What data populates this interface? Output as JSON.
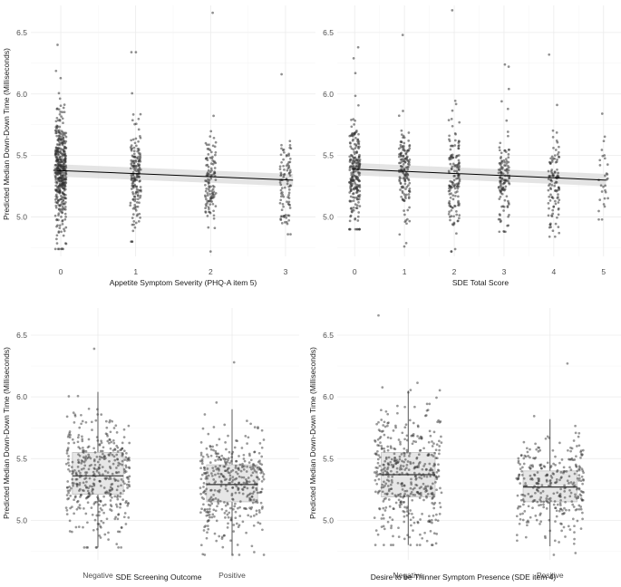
{
  "figure": {
    "panels": [
      {
        "id": "appetite",
        "xlabel": "Appetite Symptom Severity (PHQ-A item 5)",
        "ylabel": "Predicted Median Down-Down Time (Milliseconds)"
      },
      {
        "id": "sde-total",
        "xlabel": "SDE Total Score",
        "ylabel": ""
      },
      {
        "id": "sde-screening",
        "xlabel": "SDE Screening Outcome",
        "ylabel": "Predicted Median Down-Down Time (Milliseconds)"
      },
      {
        "id": "thinner",
        "xlabel": "Desire to be Thinner Symptom Presence (SDE item 4)",
        "ylabel": "Predicted Median Down-Down Time (Milliseconds)"
      }
    ]
  },
  "chart_data": [
    {
      "type": "scatter",
      "title": "",
      "xlabel": "Appetite Symptom Severity (PHQ-A item 5)",
      "ylabel": "Predicted Median Down-Down Time (Milliseconds)",
      "x_ticks": [
        "0",
        "1",
        "2",
        "3"
      ],
      "y_ticks": [
        "5.0",
        "5.5",
        "6.0",
        "6.5"
      ],
      "xlim": [
        -0.4,
        3.4
      ],
      "ylim": [
        4.68,
        6.72
      ],
      "grid": true,
      "point_color": "#333333",
      "groups": [
        {
          "x": 0,
          "n": 420,
          "center": 5.38,
          "spread": 0.23,
          "min": 4.74,
          "max": 6.4
        },
        {
          "x": 1,
          "n": 170,
          "center": 5.33,
          "spread": 0.22,
          "min": 4.8,
          "max": 6.34
        },
        {
          "x": 2,
          "n": 120,
          "center": 5.3,
          "spread": 0.22,
          "min": 4.72,
          "max": 6.66
        },
        {
          "x": 3,
          "n": 95,
          "center": 5.28,
          "spread": 0.21,
          "min": 4.86,
          "max": 6.16
        }
      ],
      "trend": {
        "x": [
          -0.1,
          3.1
        ],
        "y": [
          5.38,
          5.3
        ],
        "band": 0.05,
        "color": "#000000",
        "band_color": "#d9d9d9"
      }
    },
    {
      "type": "scatter",
      "title": "",
      "xlabel": "SDE Total Score",
      "ylabel": "",
      "x_ticks": [
        "0",
        "1",
        "2",
        "3",
        "4",
        "5"
      ],
      "y_ticks": [
        "5.0",
        "5.5",
        "6.0",
        "6.5"
      ],
      "xlim": [
        -0.35,
        5.35
      ],
      "ylim": [
        4.68,
        6.72
      ],
      "grid": true,
      "point_color": "#333333",
      "groups": [
        {
          "x": 0,
          "n": 230,
          "center": 5.38,
          "spread": 0.23,
          "min": 4.9,
          "max": 6.38
        },
        {
          "x": 1,
          "n": 150,
          "center": 5.36,
          "spread": 0.22,
          "min": 4.76,
          "max": 6.48
        },
        {
          "x": 2,
          "n": 150,
          "center": 5.33,
          "spread": 0.22,
          "min": 4.72,
          "max": 6.68
        },
        {
          "x": 3,
          "n": 130,
          "center": 5.31,
          "spread": 0.21,
          "min": 4.88,
          "max": 6.24
        },
        {
          "x": 4,
          "n": 110,
          "center": 5.3,
          "spread": 0.21,
          "min": 4.84,
          "max": 6.32
        },
        {
          "x": 5,
          "n": 30,
          "center": 5.28,
          "spread": 0.2,
          "min": 4.98,
          "max": 5.84
        }
      ],
      "trend": {
        "x": [
          -0.05,
          5.05
        ],
        "y": [
          5.39,
          5.3
        ],
        "band": 0.05,
        "color": "#000000",
        "band_color": "#d9d9d9"
      }
    },
    {
      "type": "box",
      "title": "",
      "xlabel": "SDE Screening Outcome",
      "ylabel": "Predicted Median Down-Down Time (Milliseconds)",
      "categories": [
        "Negative",
        "Positive"
      ],
      "y_ticks": [
        "5.0",
        "5.5",
        "6.0",
        "6.5"
      ],
      "ylim": [
        4.68,
        6.72
      ],
      "grid": true,
      "point_color": "#333333",
      "box_fill": "#e6e6e6",
      "boxes": [
        {
          "category": "Negative",
          "n": 430,
          "q1": 5.21,
          "median": 5.36,
          "q3": 5.55,
          "whisker_low": 4.78,
          "whisker_high": 6.04,
          "min": 4.78,
          "max": 6.39
        },
        {
          "category": "Positive",
          "n": 400,
          "q1": 5.15,
          "median": 5.29,
          "q3": 5.45,
          "whisker_low": 4.72,
          "whisker_high": 5.9,
          "min": 4.72,
          "max": 6.28
        }
      ]
    },
    {
      "type": "box",
      "title": "",
      "xlabel": "Desire to be Thinner Symptom Presence (SDE item 4)",
      "ylabel": "Predicted Median Down-Down Time (Milliseconds)",
      "categories": [
        "Negative",
        "Positive"
      ],
      "y_ticks": [
        "5.0",
        "5.5",
        "6.0",
        "6.5"
      ],
      "ylim": [
        4.68,
        6.72
      ],
      "grid": true,
      "point_color": "#333333",
      "box_fill": "#e6e6e6",
      "boxes": [
        {
          "category": "Negative",
          "n": 460,
          "q1": 5.19,
          "median": 5.37,
          "q3": 5.55,
          "whisker_low": 4.8,
          "whisker_high": 6.05,
          "min": 4.8,
          "max": 6.66
        },
        {
          "category": "Positive",
          "n": 330,
          "q1": 5.15,
          "median": 5.27,
          "q3": 5.4,
          "whisker_low": 4.79,
          "whisker_high": 5.82,
          "min": 4.72,
          "max": 6.27
        }
      ]
    }
  ]
}
